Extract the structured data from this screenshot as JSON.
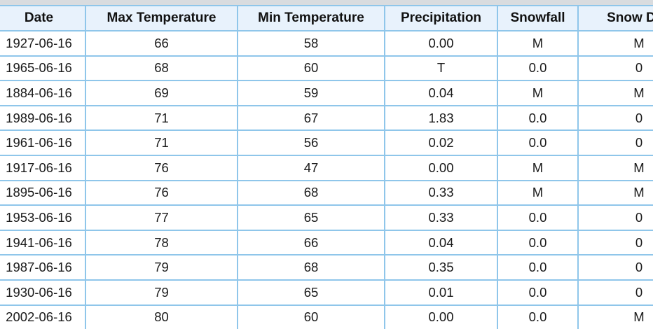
{
  "table": {
    "headers": {
      "date": "Date",
      "max_temp": "Max Temperature",
      "min_temp": "Min Temperature",
      "precipitation": "Precipitation",
      "snowfall": "Snowfall",
      "snow_depth": "Snow Dep"
    },
    "rows": [
      {
        "date": "1927-06-16",
        "max": "66",
        "min": "58",
        "precip": "0.00",
        "snowfall": "M",
        "depth": "M"
      },
      {
        "date": "1965-06-16",
        "max": "68",
        "min": "60",
        "precip": "T",
        "snowfall": "0.0",
        "depth": "0"
      },
      {
        "date": "1884-06-16",
        "max": "69",
        "min": "59",
        "precip": "0.04",
        "snowfall": "M",
        "depth": "M"
      },
      {
        "date": "1989-06-16",
        "max": "71",
        "min": "67",
        "precip": "1.83",
        "snowfall": "0.0",
        "depth": "0"
      },
      {
        "date": "1961-06-16",
        "max": "71",
        "min": "56",
        "precip": "0.02",
        "snowfall": "0.0",
        "depth": "0"
      },
      {
        "date": "1917-06-16",
        "max": "76",
        "min": "47",
        "precip": "0.00",
        "snowfall": "M",
        "depth": "M"
      },
      {
        "date": "1895-06-16",
        "max": "76",
        "min": "68",
        "precip": "0.33",
        "snowfall": "M",
        "depth": "M"
      },
      {
        "date": "1953-06-16",
        "max": "77",
        "min": "65",
        "precip": "0.33",
        "snowfall": "0.0",
        "depth": "0"
      },
      {
        "date": "1941-06-16",
        "max": "78",
        "min": "66",
        "precip": "0.04",
        "snowfall": "0.0",
        "depth": "0"
      },
      {
        "date": "1987-06-16",
        "max": "79",
        "min": "68",
        "precip": "0.35",
        "snowfall": "0.0",
        "depth": "0"
      },
      {
        "date": "1930-06-16",
        "max": "79",
        "min": "65",
        "precip": "0.01",
        "snowfall": "0.0",
        "depth": "0"
      },
      {
        "date": "2002-06-16",
        "max": "80",
        "min": "60",
        "precip": "0.00",
        "snowfall": "0.0",
        "depth": "M"
      }
    ]
  }
}
